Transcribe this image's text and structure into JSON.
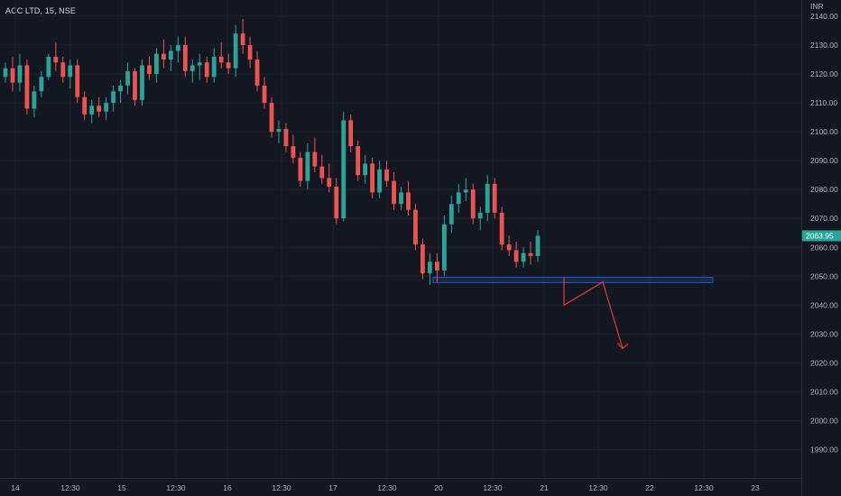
{
  "header": {
    "title": "ACC LTD, 15, NSE"
  },
  "chart_data": {
    "type": "candlestick",
    "currency_label": "INR",
    "last_price_label": "2063.95",
    "ylim": [
      1982,
      2142
    ],
    "y_ticks": [
      2140,
      2130,
      2120,
      2110,
      2100,
      2090,
      2080,
      2070,
      2060,
      2050,
      2040,
      2030,
      2020,
      2010,
      2000,
      1990
    ],
    "y_tick_labels": [
      "2140.00",
      "2130.00",
      "2120.00",
      "2110.00",
      "2100.00",
      "2090.00",
      "2080.00",
      "2070.00",
      "2060.00",
      "2050.00",
      "2040.00",
      "2030.00",
      "2020.00",
      "2010.00",
      "2000.00",
      "1990.00"
    ],
    "x_ticks": [
      "14",
      "12:30",
      "15",
      "12:30",
      "16",
      "12:30",
      "17",
      "12:30",
      "20",
      "12:30",
      "21",
      "12:30",
      "22",
      "12:30",
      "23"
    ],
    "candles": [
      [
        2119,
        2124,
        2117,
        2122
      ],
      [
        2122,
        2126,
        2114,
        2117
      ],
      [
        2117,
        2127,
        2114,
        2123
      ],
      [
        2123,
        2125,
        2106,
        2108
      ],
      [
        2108,
        2116,
        2105,
        2114
      ],
      [
        2114,
        2121,
        2112,
        2119
      ],
      [
        2119,
        2127,
        2118,
        2126
      ],
      [
        2126,
        2131,
        2121,
        2124
      ],
      [
        2124,
        2126,
        2117,
        2119
      ],
      [
        2119,
        2125,
        2115,
        2123
      ],
      [
        2123,
        2125,
        2110,
        2112
      ],
      [
        2112,
        2114,
        2104,
        2106
      ],
      [
        2106,
        2111,
        2103,
        2109
      ],
      [
        2109,
        2112,
        2105,
        2107
      ],
      [
        2107,
        2112,
        2104,
        2110
      ],
      [
        2110,
        2116,
        2107,
        2114
      ],
      [
        2114,
        2118,
        2110,
        2116
      ],
      [
        2116,
        2124,
        2113,
        2121
      ],
      [
        2121,
        2122,
        2109,
        2111
      ],
      [
        2111,
        2125,
        2109,
        2123
      ],
      [
        2123,
        2126,
        2118,
        2120
      ],
      [
        2120,
        2129,
        2117,
        2127
      ],
      [
        2127,
        2132,
        2122,
        2125
      ],
      [
        2125,
        2130,
        2121,
        2128
      ],
      [
        2128,
        2133,
        2124,
        2130
      ],
      [
        2130,
        2133,
        2119,
        2121
      ],
      [
        2121,
        2125,
        2117,
        2123
      ],
      [
        2123,
        2127,
        2118,
        2124
      ],
      [
        2124,
        2126,
        2117,
        2119
      ],
      [
        2119,
        2129,
        2117,
        2126
      ],
      [
        2126,
        2131,
        2122,
        2124
      ],
      [
        2124,
        2127,
        2120,
        2122
      ],
      [
        2122,
        2137,
        2119,
        2134
      ],
      [
        2134,
        2139,
        2127,
        2130
      ],
      [
        2130,
        2133,
        2122,
        2125
      ],
      [
        2125,
        2128,
        2114,
        2116
      ],
      [
        2116,
        2119,
        2108,
        2110
      ],
      [
        2110,
        2112,
        2098,
        2100
      ],
      [
        2100,
        2104,
        2096,
        2101
      ],
      [
        2101,
        2103,
        2093,
        2095
      ],
      [
        2095,
        2099,
        2089,
        2091
      ],
      [
        2091,
        2093,
        2081,
        2083
      ],
      [
        2083,
        2096,
        2080,
        2093
      ],
      [
        2093,
        2098,
        2086,
        2088
      ],
      [
        2088,
        2092,
        2082,
        2084
      ],
      [
        2084,
        2089,
        2079,
        2081
      ],
      [
        2081,
        2084,
        2068,
        2070
      ],
      [
        2070,
        2107,
        2069,
        2104
      ],
      [
        2104,
        2106,
        2093,
        2095
      ],
      [
        2095,
        2097,
        2083,
        2085
      ],
      [
        2085,
        2092,
        2082,
        2089
      ],
      [
        2089,
        2091,
        2077,
        2079
      ],
      [
        2079,
        2090,
        2077,
        2087
      ],
      [
        2087,
        2090,
        2081,
        2083
      ],
      [
        2083,
        2086,
        2073,
        2075
      ],
      [
        2075,
        2081,
        2073,
        2079
      ],
      [
        2079,
        2083,
        2071,
        2073
      ],
      [
        2073,
        2075,
        2059,
        2061
      ],
      [
        2061,
        2063,
        2049,
        2051
      ],
      [
        2051,
        2058,
        2047,
        2055
      ],
      [
        2055,
        2058,
        2048,
        2052
      ],
      [
        2052,
        2071,
        2050,
        2068
      ],
      [
        2068,
        2078,
        2065,
        2075
      ],
      [
        2075,
        2082,
        2072,
        2079
      ],
      [
        2079,
        2084,
        2076,
        2080
      ],
      [
        2080,
        2082,
        2068,
        2070
      ],
      [
        2070,
        2074,
        2066,
        2072
      ],
      [
        2072,
        2085,
        2069,
        2082
      ],
      [
        2082,
        2084,
        2070,
        2072
      ],
      [
        2072,
        2074,
        2059,
        2061
      ],
      [
        2061,
        2064,
        2057,
        2059
      ],
      [
        2059,
        2062,
        2053,
        2055
      ],
      [
        2055,
        2060,
        2053,
        2058
      ],
      [
        2058,
        2062,
        2054,
        2057
      ],
      [
        2057,
        2066,
        2055,
        2064
      ]
    ],
    "annotations": {
      "support_zone": {
        "price_from": 2049.6,
        "price_to": 2047.8
      },
      "projection_path": [
        [
          2049.5,
          2040
        ],
        [
          2040,
          2048
        ],
        [
          2048,
          2025
        ]
      ]
    }
  },
  "colors": {
    "background": "#131722",
    "up": "#26a69a",
    "down": "#ef5350",
    "grid": "#1e222d",
    "axis_text": "#b2b5be",
    "last_price_bg": "#26a69a",
    "zone_fill": "#1e2a45",
    "zone_stroke": "#2962ff",
    "projection": "#e53935"
  }
}
